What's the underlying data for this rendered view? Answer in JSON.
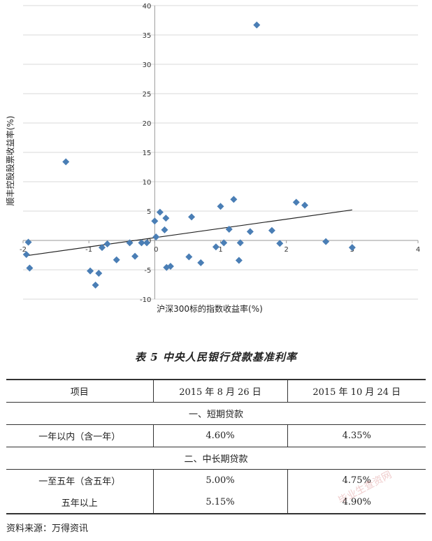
{
  "chart_data": {
    "type": "scatter",
    "title": "",
    "xlabel": "沪深300标的指数收益率(%)",
    "ylabel": "顺丰控股股票收益率(%)",
    "xlim": [
      -2,
      4
    ],
    "ylim": [
      -10,
      40
    ],
    "x_ticks": [
      -2,
      -1,
      0,
      1,
      2,
      3,
      4
    ],
    "y_ticks": [
      -10,
      -5,
      0,
      5,
      10,
      15,
      20,
      25,
      30,
      35,
      40
    ],
    "grid": "horizontal",
    "marker": "diamond",
    "point_color": "#4a7eb5",
    "trendline": {
      "x": [
        -1.95,
        3.0
      ],
      "y": [
        -2.6,
        5.2
      ],
      "color": "#222222"
    },
    "points": [
      {
        "x": -1.95,
        "y": -2.4
      },
      {
        "x": -1.92,
        "y": -0.3
      },
      {
        "x": -1.9,
        "y": -4.7
      },
      {
        "x": -1.35,
        "y": 13.4
      },
      {
        "x": -0.98,
        "y": -5.2
      },
      {
        "x": -0.9,
        "y": -7.6
      },
      {
        "x": -0.85,
        "y": -5.6
      },
      {
        "x": -0.8,
        "y": -1.2
      },
      {
        "x": -0.72,
        "y": -0.6
      },
      {
        "x": -0.58,
        "y": -3.3
      },
      {
        "x": -0.38,
        "y": -0.4
      },
      {
        "x": -0.3,
        "y": -2.7
      },
      {
        "x": -0.2,
        "y": -0.4
      },
      {
        "x": -0.12,
        "y": -0.4
      },
      {
        "x": 0.0,
        "y": 3.3
      },
      {
        "x": 0.02,
        "y": 0.6
      },
      {
        "x": 0.08,
        "y": 4.8
      },
      {
        "x": 0.15,
        "y": 1.8
      },
      {
        "x": 0.17,
        "y": 3.8
      },
      {
        "x": 0.18,
        "y": -4.6
      },
      {
        "x": 0.24,
        "y": -4.4
      },
      {
        "x": 0.52,
        "y": -2.8
      },
      {
        "x": 0.56,
        "y": 4.0
      },
      {
        "x": 0.7,
        "y": -3.8
      },
      {
        "x": 0.93,
        "y": -1.1
      },
      {
        "x": 1.0,
        "y": 5.8
      },
      {
        "x": 1.05,
        "y": -0.4
      },
      {
        "x": 1.13,
        "y": 1.9
      },
      {
        "x": 1.2,
        "y": 7.0
      },
      {
        "x": 1.28,
        "y": -3.4
      },
      {
        "x": 1.3,
        "y": -0.4
      },
      {
        "x": 1.55,
        "y": 36.7
      },
      {
        "x": 1.45,
        "y": 1.5
      },
      {
        "x": 1.78,
        "y": 1.7
      },
      {
        "x": 1.9,
        "y": -0.5
      },
      {
        "x": 2.15,
        "y": 6.5
      },
      {
        "x": 2.28,
        "y": 6.0
      },
      {
        "x": 2.6,
        "y": -0.2
      },
      {
        "x": 3.0,
        "y": -1.2
      }
    ]
  },
  "table": {
    "caption": "表 5  中央人民银行贷款基准利率",
    "headers": [
      "项目",
      "2015 年 8 月 26 日",
      "2015 年 10 月 24 日"
    ],
    "sections": [
      {
        "title": "一、短期贷款",
        "rows": [
          {
            "item": "一年以内（含一年）",
            "rate_1": "4.60%",
            "rate_2": "4.35%"
          }
        ]
      },
      {
        "title": "二、中长期贷款",
        "rows": [
          {
            "item": "一至五年（含五年）",
            "rate_1": "5.00%",
            "rate_2": "4.75%"
          },
          {
            "item": "五年以上",
            "rate_1": "5.15%",
            "rate_2": "4.90%"
          }
        ]
      }
    ]
  },
  "source": "资料来源：万得资讯",
  "watermark": "毕业生查资网"
}
